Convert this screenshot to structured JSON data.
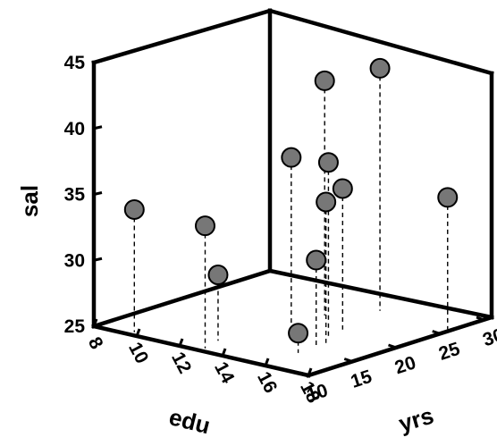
{
  "chart_data": {
    "type": "scatter",
    "projection": "3d",
    "title": "",
    "xlabel": "yrs",
    "ylabel": "edu",
    "zlabel": "sal",
    "xlim": [
      10,
      30
    ],
    "ylim": [
      8,
      18
    ],
    "zlim": [
      25,
      45
    ],
    "xticks": [
      10,
      15,
      20,
      25,
      30
    ],
    "yticks": [
      8,
      10,
      12,
      14,
      16,
      18
    ],
    "zticks": [
      25,
      30,
      35,
      40,
      45
    ],
    "marker_color": "#777777",
    "drop_lines": true,
    "points": [
      {
        "x": 10.7,
        "y": 9.6,
        "z": 34.3
      },
      {
        "x": 10.7,
        "y": 12.9,
        "z": 34.3
      },
      {
        "x": 12.9,
        "y": 12.6,
        "z": 30.0
      },
      {
        "x": 14.2,
        "y": 15.8,
        "z": 26.5
      },
      {
        "x": 16.0,
        "y": 15.9,
        "z": 31.7
      },
      {
        "x": 17.6,
        "y": 15.7,
        "z": 35.7
      },
      {
        "x": 17.8,
        "y": 14.0,
        "z": 38.4
      },
      {
        "x": 19.1,
        "y": 15.2,
        "z": 38.2
      },
      {
        "x": 21.2,
        "y": 15.0,
        "z": 35.7
      },
      {
        "x": 26.3,
        "y": 17.8,
        "z": 35.0
      },
      {
        "x": 23.3,
        "y": 13.3,
        "z": 42.8
      },
      {
        "x": 26.9,
        "y": 14.4,
        "z": 43.4
      }
    ]
  }
}
